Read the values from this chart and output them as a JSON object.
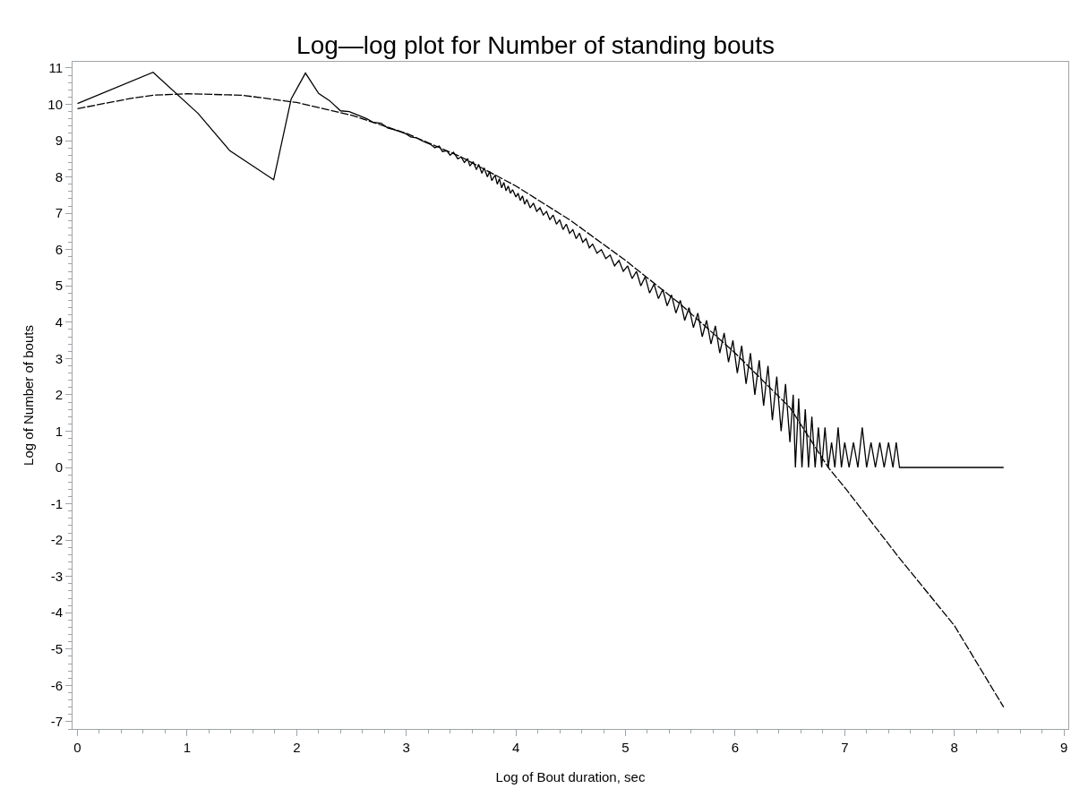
{
  "chart_data": {
    "type": "line",
    "title": "Log—log plot for Number of standing bouts",
    "xlabel": "Log of Bout duration, sec",
    "ylabel": "Log of Number of bouts",
    "xlim": [
      -0.045,
      9.04
    ],
    "ylim": [
      -7.2,
      11.17
    ],
    "xticks": [
      0,
      1,
      2,
      3,
      4,
      5,
      6,
      7,
      8,
      9
    ],
    "yticks": [
      -7,
      -6,
      -5,
      -4,
      -3,
      -2,
      -1,
      0,
      1,
      2,
      3,
      4,
      5,
      6,
      7,
      8,
      9,
      10,
      11
    ],
    "grid": false,
    "marker": "none",
    "series": [
      {
        "color": "#000000",
        "line_style": "solid",
        "x": [
          0,
          0.69,
          1.1,
          1.39,
          1.79,
          1.95,
          2.08,
          2.2,
          2.3,
          2.4,
          2.48,
          2.56,
          2.64,
          2.7,
          2.77,
          2.83,
          2.89,
          2.94,
          3.0,
          3.04,
          3.09,
          3.14,
          3.18,
          3.22,
          3.26,
          3.3,
          3.33,
          3.37,
          3.4,
          3.43,
          3.47,
          3.5,
          3.53,
          3.56,
          3.58,
          3.61,
          3.64,
          3.66,
          3.69,
          3.71,
          3.74,
          3.76,
          3.78,
          3.81,
          3.83,
          3.85,
          3.87,
          3.89,
          3.91,
          3.93,
          3.95,
          3.97,
          4.0,
          4.02,
          4.04,
          4.06,
          4.08,
          4.1,
          4.13,
          4.16,
          4.19,
          4.22,
          4.25,
          4.28,
          4.31,
          4.34,
          4.37,
          4.4,
          4.43,
          4.46,
          4.49,
          4.52,
          4.55,
          4.58,
          4.61,
          4.64,
          4.67,
          4.7,
          4.74,
          4.78,
          4.82,
          4.86,
          4.9,
          4.94,
          4.98,
          5.02,
          5.06,
          5.1,
          5.14,
          5.18,
          5.22,
          5.26,
          5.3,
          5.34,
          5.38,
          5.42,
          5.46,
          5.5,
          5.54,
          5.58,
          5.62,
          5.66,
          5.7,
          5.74,
          5.78,
          5.82,
          5.86,
          5.9,
          5.94,
          5.98,
          6.02,
          6.06,
          6.1,
          6.14,
          6.18,
          6.22,
          6.26,
          6.3,
          6.34,
          6.38,
          6.42,
          6.46,
          6.5,
          6.53,
          6.55,
          6.58,
          6.61,
          6.64,
          6.67,
          6.7,
          6.73,
          6.76,
          6.79,
          6.82,
          6.85,
          6.88,
          6.91,
          6.94,
          6.97,
          7.0,
          7.04,
          7.08,
          7.12,
          7.16,
          7.2,
          7.24,
          7.28,
          7.32,
          7.36,
          7.4,
          7.44,
          7.47,
          7.5,
          8.45
        ],
        "values": [
          10.02,
          10.88,
          9.75,
          8.72,
          7.92,
          10.15,
          10.86,
          10.3,
          10.1,
          9.82,
          9.8,
          9.7,
          9.6,
          9.5,
          9.48,
          9.35,
          9.3,
          9.25,
          9.18,
          9.1,
          9.08,
          9.0,
          8.95,
          8.9,
          8.8,
          8.85,
          8.7,
          8.72,
          8.6,
          8.68,
          8.5,
          8.55,
          8.4,
          8.5,
          8.3,
          8.42,
          8.2,
          8.35,
          8.1,
          8.25,
          8.0,
          8.15,
          7.9,
          8.05,
          7.8,
          7.95,
          7.7,
          7.85,
          7.62,
          7.75,
          7.55,
          7.65,
          7.45,
          7.55,
          7.35,
          7.48,
          7.25,
          7.38,
          7.15,
          7.28,
          7.05,
          7.15,
          6.95,
          7.05,
          6.82,
          6.95,
          6.7,
          6.82,
          6.55,
          6.7,
          6.45,
          6.55,
          6.3,
          6.45,
          6.2,
          6.3,
          6.05,
          6.15,
          5.9,
          6.0,
          5.75,
          5.85,
          5.55,
          5.7,
          5.4,
          5.55,
          5.2,
          5.4,
          5.0,
          5.25,
          4.8,
          5.05,
          4.65,
          4.9,
          4.45,
          4.75,
          4.25,
          4.6,
          4.05,
          4.4,
          3.85,
          4.25,
          3.6,
          4.05,
          3.4,
          3.9,
          3.15,
          3.7,
          2.9,
          3.5,
          2.6,
          3.35,
          2.3,
          3.15,
          2.0,
          2.95,
          1.7,
          2.8,
          1.3,
          2.5,
          1.0,
          2.3,
          0.7,
          2.0,
          0.0,
          1.9,
          0.0,
          1.6,
          0.0,
          1.4,
          0.0,
          1.1,
          0.0,
          1.1,
          0.0,
          0.69,
          0.0,
          1.1,
          0.0,
          0.69,
          0.0,
          0.69,
          0.0,
          1.1,
          0.0,
          0.69,
          0.0,
          0.69,
          0.0,
          0.69,
          0.0,
          0.69,
          0.0,
          0
        ]
      },
      {
        "color": "#000000",
        "line_style": "dashed",
        "x": [
          0,
          0.5,
          0.69,
          1,
          1.5,
          2,
          2.5,
          3,
          3.5,
          4,
          4.5,
          5,
          5.5,
          6,
          6.5,
          6.85,
          7,
          7.5,
          8,
          8.45
        ],
        "values": [
          9.88,
          10.17,
          10.25,
          10.29,
          10.25,
          10.05,
          9.7,
          9.2,
          8.55,
          7.75,
          6.8,
          5.7,
          4.5,
          3.15,
          1.65,
          0.0,
          -0.55,
          -2.5,
          -4.35,
          -6.6
        ]
      }
    ]
  }
}
